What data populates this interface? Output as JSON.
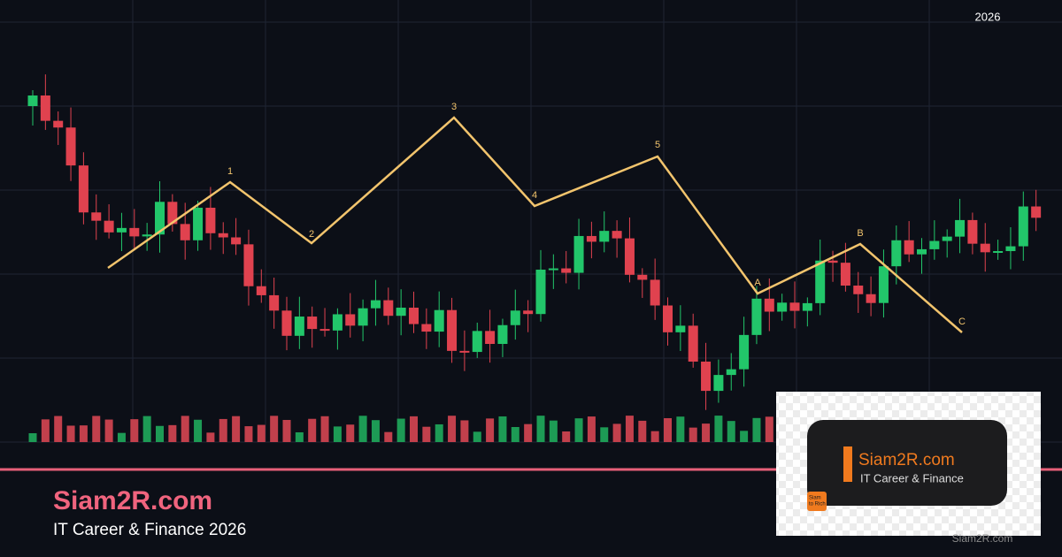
{
  "header_year": "2026",
  "wave_labels": [
    "1",
    "2",
    "3",
    "4",
    "5",
    "A",
    "B",
    "C"
  ],
  "brand": {
    "title": "Siam2R.com",
    "subtitle": "IT Career & Finance 2026"
  },
  "logo": {
    "title": "Siam2R.com",
    "subtitle": "IT Career & Finance",
    "badge": [
      "Siam",
      "to Rich"
    ]
  },
  "watermark": "Siam2R.com"
}
